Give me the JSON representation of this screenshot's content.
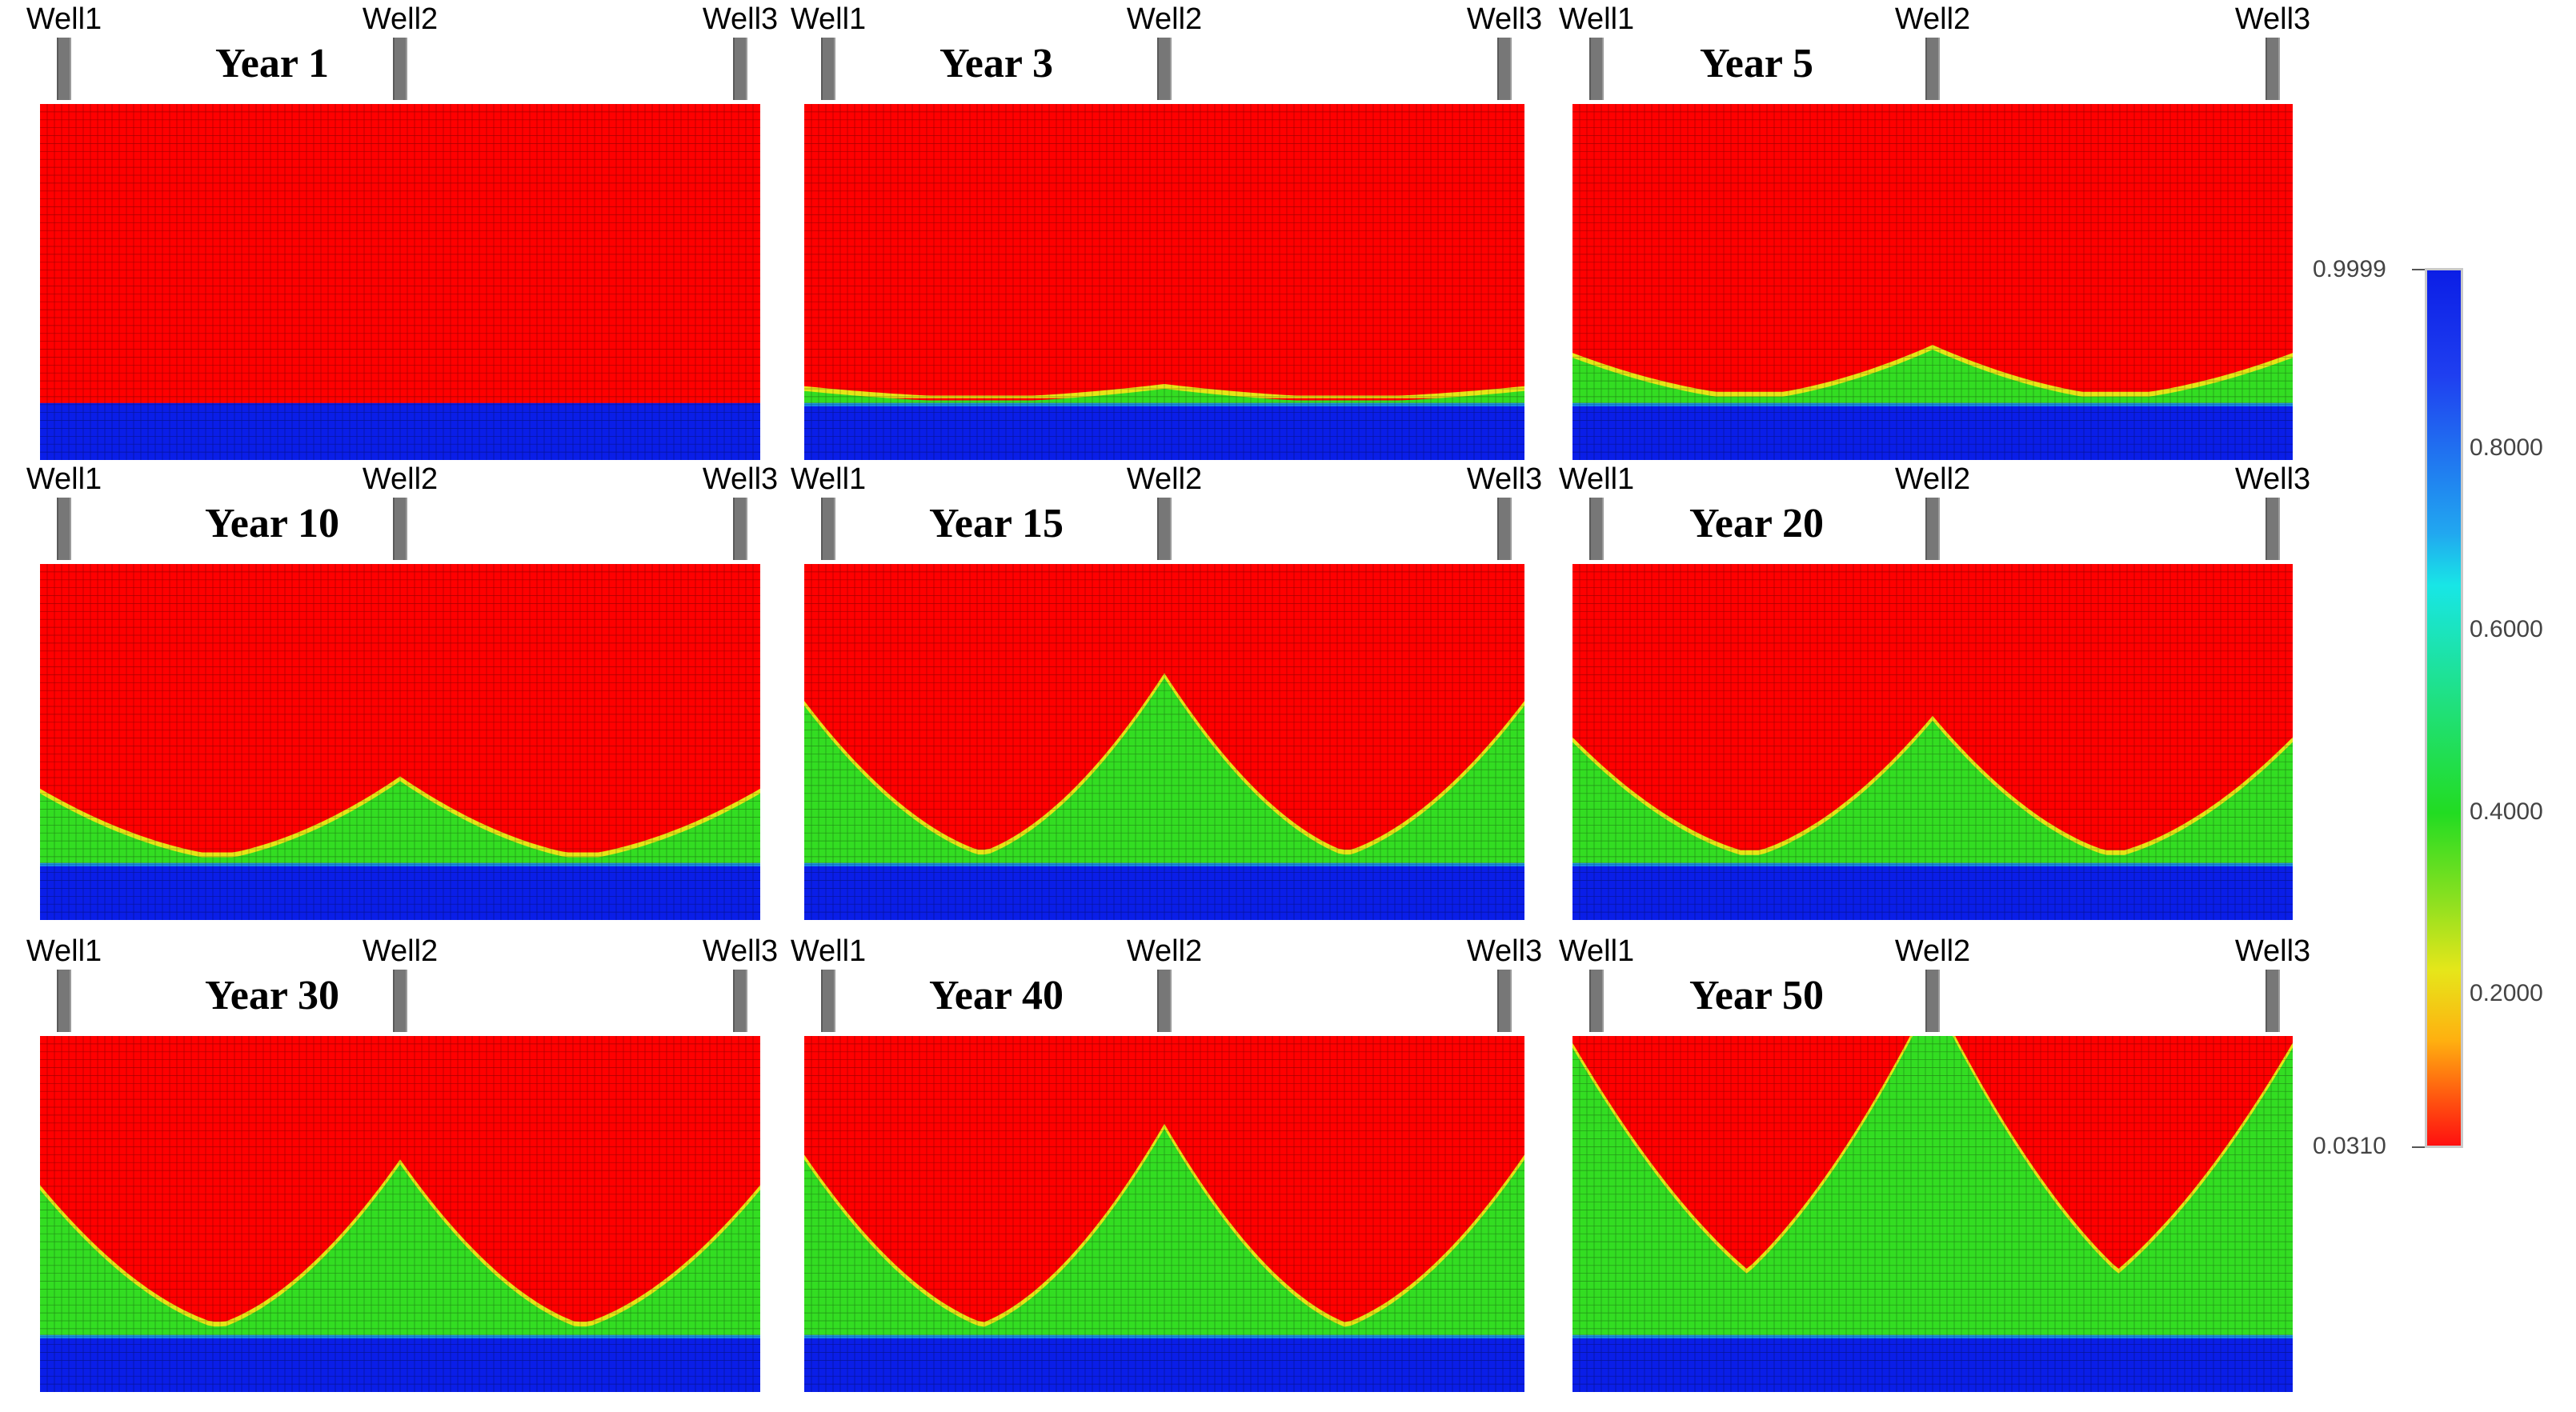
{
  "panels": [
    {
      "title": "Year 1",
      "wells": [
        "Well1",
        "Well2",
        "Well3"
      ]
    },
    {
      "title": "Year 3",
      "wells": [
        "Well1",
        "Well2",
        "Well3"
      ]
    },
    {
      "title": "Year 5",
      "wells": [
        "Well1",
        "Well2",
        "Well3"
      ]
    },
    {
      "title": "Year 10",
      "wells": [
        "Well1",
        "Well2",
        "Well3"
      ]
    },
    {
      "title": "Year 15",
      "wells": [
        "Well1",
        "Well2",
        "Well3"
      ]
    },
    {
      "title": "Year 20",
      "wells": [
        "Well1",
        "Well2",
        "Well3"
      ]
    },
    {
      "title": "Year 30",
      "wells": [
        "Well1",
        "Well2",
        "Well3"
      ]
    },
    {
      "title": "Year 40",
      "wells": [
        "Well1",
        "Well2",
        "Well3"
      ]
    },
    {
      "title": "Year 50",
      "wells": [
        "Well1",
        "Well2",
        "Well3"
      ]
    }
  ],
  "colorbar": {
    "max_label": "0.9999",
    "min_label": "0.0310",
    "ticks": [
      "0.8000",
      "0.6000",
      "0.4000",
      "0.2000"
    ]
  },
  "colors": {
    "oil": "#ff0000",
    "water": "#0a1ee8",
    "transition": "#33dd22",
    "edge": "#e6e616",
    "grid": "#000000",
    "well": "#777777"
  }
}
